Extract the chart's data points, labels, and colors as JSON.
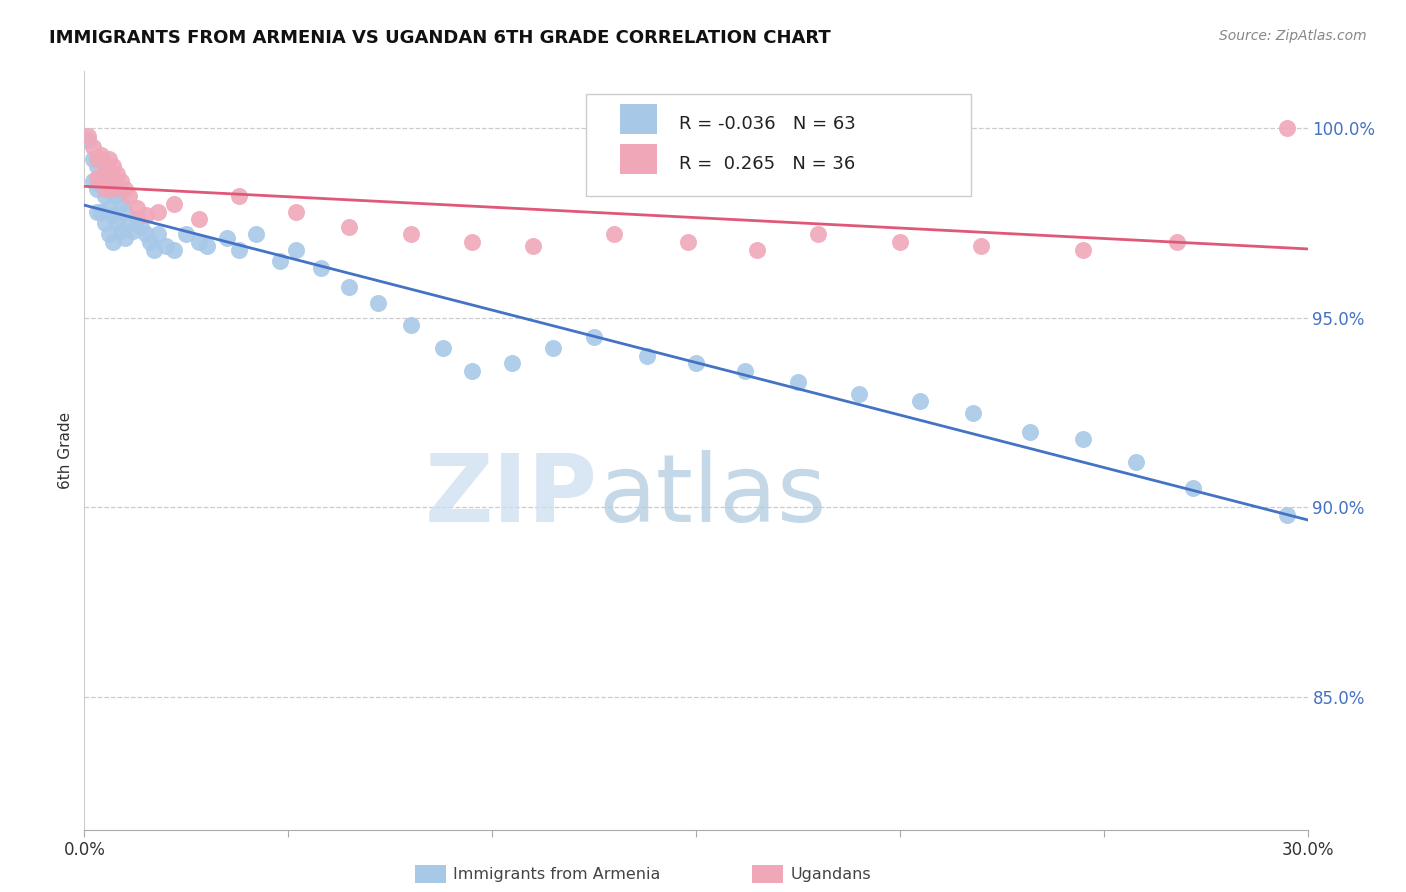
{
  "title": "IMMIGRANTS FROM ARMENIA VS UGANDAN 6TH GRADE CORRELATION CHART",
  "source": "Source: ZipAtlas.com",
  "ylabel": "6th Grade",
  "ytick_values": [
    1.0,
    0.95,
    0.9,
    0.85
  ],
  "xmin": 0.0,
  "xmax": 0.3,
  "ymin": 0.815,
  "ymax": 1.015,
  "r_blue": -0.036,
  "n_blue": 63,
  "r_pink": 0.265,
  "n_pink": 36,
  "blue_color": "#a8c8e8",
  "pink_color": "#f0a8b8",
  "blue_line_color": "#4472c4",
  "pink_line_color": "#e05878",
  "legend_label_blue": "Immigrants from Armenia",
  "legend_label_pink": "Ugandans",
  "blue_x": [
    0.001,
    0.002,
    0.002,
    0.003,
    0.003,
    0.003,
    0.004,
    0.004,
    0.004,
    0.005,
    0.005,
    0.005,
    0.006,
    0.006,
    0.006,
    0.007,
    0.007,
    0.007,
    0.008,
    0.008,
    0.009,
    0.009,
    0.01,
    0.01,
    0.011,
    0.012,
    0.013,
    0.014,
    0.015,
    0.016,
    0.017,
    0.018,
    0.02,
    0.022,
    0.025,
    0.028,
    0.03,
    0.035,
    0.038,
    0.042,
    0.048,
    0.052,
    0.058,
    0.065,
    0.072,
    0.08,
    0.088,
    0.095,
    0.105,
    0.115,
    0.125,
    0.138,
    0.15,
    0.162,
    0.175,
    0.19,
    0.205,
    0.218,
    0.232,
    0.245,
    0.258,
    0.272,
    0.295
  ],
  "blue_y": [
    0.997,
    0.992,
    0.986,
    0.99,
    0.984,
    0.978,
    0.992,
    0.985,
    0.978,
    0.988,
    0.982,
    0.975,
    0.985,
    0.979,
    0.972,
    0.983,
    0.977,
    0.97,
    0.982,
    0.975,
    0.98,
    0.973,
    0.978,
    0.971,
    0.975,
    0.973,
    0.976,
    0.974,
    0.972,
    0.97,
    0.968,
    0.972,
    0.969,
    0.968,
    0.972,
    0.97,
    0.969,
    0.971,
    0.968,
    0.972,
    0.965,
    0.968,
    0.963,
    0.958,
    0.954,
    0.948,
    0.942,
    0.936,
    0.938,
    0.942,
    0.945,
    0.94,
    0.938,
    0.936,
    0.933,
    0.93,
    0.928,
    0.925,
    0.92,
    0.918,
    0.912,
    0.905,
    0.898
  ],
  "pink_x": [
    0.001,
    0.002,
    0.003,
    0.003,
    0.004,
    0.004,
    0.005,
    0.005,
    0.006,
    0.006,
    0.007,
    0.007,
    0.008,
    0.009,
    0.01,
    0.011,
    0.013,
    0.015,
    0.018,
    0.022,
    0.028,
    0.038,
    0.052,
    0.065,
    0.08,
    0.095,
    0.11,
    0.13,
    0.148,
    0.165,
    0.18,
    0.2,
    0.22,
    0.245,
    0.268,
    0.295
  ],
  "pink_y": [
    0.998,
    0.995,
    0.992,
    0.987,
    0.993,
    0.987,
    0.99,
    0.984,
    0.992,
    0.986,
    0.99,
    0.984,
    0.988,
    0.986,
    0.984,
    0.982,
    0.979,
    0.977,
    0.978,
    0.98,
    0.976,
    0.982,
    0.978,
    0.974,
    0.972,
    0.97,
    0.969,
    0.972,
    0.97,
    0.968,
    0.972,
    0.97,
    0.969,
    0.968,
    0.97,
    1.0
  ]
}
